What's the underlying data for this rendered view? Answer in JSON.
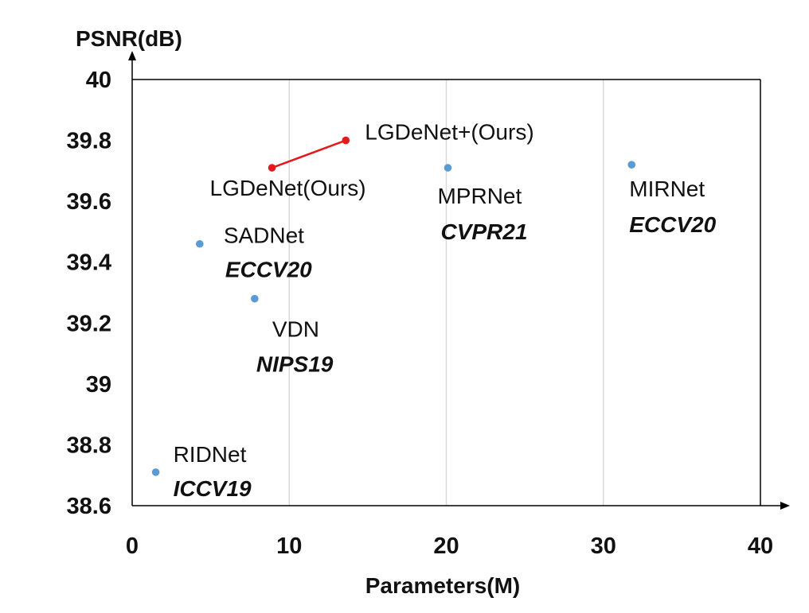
{
  "chart_data": {
    "type": "scatter",
    "xlabel": "Parameters(M)",
    "ylabel": "PSNR(dB)",
    "xlim": [
      0,
      40
    ],
    "ylim": [
      38.6,
      40
    ],
    "x_ticks": [
      0,
      10,
      20,
      30,
      40
    ],
    "y_ticks": [
      38.6,
      38.8,
      39,
      39.2,
      39.4,
      39.6,
      39.8,
      40
    ],
    "x_tick_labels": [
      "0",
      "10",
      "20",
      "30",
      "40"
    ],
    "y_tick_labels": [
      "38.6",
      "38.8",
      "39",
      "39.2",
      "39.4",
      "39.6",
      "39.8",
      "40"
    ],
    "grid": {
      "vertical": true,
      "horizontal": false
    },
    "points": [
      {
        "name": "RIDNet",
        "venue": "ICCV19",
        "x": 1.5,
        "y": 38.71,
        "color": "#5b9bd5"
      },
      {
        "name": "SADNet",
        "venue": "ECCV20",
        "x": 4.3,
        "y": 39.46,
        "color": "#5b9bd5"
      },
      {
        "name": "VDN",
        "venue": "NIPS19",
        "x": 7.8,
        "y": 39.28,
        "color": "#5b9bd5"
      },
      {
        "name": "MPRNet",
        "venue": "CVPR21",
        "x": 20.1,
        "y": 39.71,
        "color": "#5b9bd5"
      },
      {
        "name": "MIRNet",
        "venue": "ECCV20",
        "x": 31.8,
        "y": 39.72,
        "color": "#5b9bd5"
      },
      {
        "name": "LGDeNet(Ours)",
        "venue": "",
        "x": 8.9,
        "y": 39.71,
        "color": "#e31a1c"
      },
      {
        "name": "LGDeNet+(Ours)",
        "venue": "",
        "x": 13.6,
        "y": 39.8,
        "color": "#e31a1c"
      }
    ],
    "connector": {
      "from": "LGDeNet(Ours)",
      "to": "LGDeNet+(Ours)",
      "color": "#e31a1c"
    }
  }
}
